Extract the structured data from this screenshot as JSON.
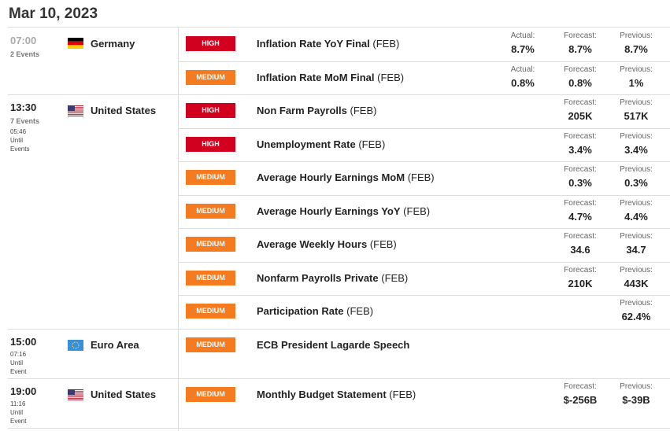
{
  "date": "Mar 10, 2023",
  "groups": [
    {
      "time": "07:00",
      "events_count": "2 Events",
      "country": "Germany",
      "countdown": [],
      "rows": [
        {
          "impact": "HIGH",
          "color": "#d2001e",
          "event": "Inflation Rate YoY Final",
          "period": "(FEB)",
          "actual": {
            "label": "Actual:",
            "value": "8.7%"
          },
          "forecast": {
            "label": "Forecast:",
            "value": "8.7%"
          },
          "previous": {
            "label": "Previous:",
            "value": "8.7%"
          }
        },
        {
          "impact": "MEDIUM",
          "color": "#f47b20",
          "event": "Inflation Rate MoM Final",
          "period": "(FEB)",
          "actual": {
            "label": "Actual:",
            "value": "0.8%"
          },
          "forecast": {
            "label": "Forecast:",
            "value": "0.8%"
          },
          "previous": {
            "label": "Previous:",
            "value": "1%"
          }
        }
      ]
    },
    {
      "time": "13:30",
      "events_count": "7 Events",
      "country": "United States",
      "countdown": [
        "05:46",
        "Until",
        "Events"
      ],
      "rows": [
        {
          "impact": "HIGH",
          "color": "#d2001e",
          "event": "Non Farm Payrolls",
          "period": "(FEB)",
          "forecast": {
            "label": "Forecast:",
            "value": "205K"
          },
          "previous": {
            "label": "Previous:",
            "value": "517K"
          }
        },
        {
          "impact": "HIGH",
          "color": "#d2001e",
          "event": "Unemployment Rate",
          "period": "(FEB)",
          "forecast": {
            "label": "Forecast:",
            "value": "3.4%"
          },
          "previous": {
            "label": "Previous:",
            "value": "3.4%"
          }
        },
        {
          "impact": "MEDIUM",
          "color": "#f47b20",
          "event": "Average Hourly Earnings MoM",
          "period": "(FEB)",
          "forecast": {
            "label": "Forecast:",
            "value": "0.3%"
          },
          "previous": {
            "label": "Previous:",
            "value": "0.3%"
          }
        },
        {
          "impact": "MEDIUM",
          "color": "#f47b20",
          "event": "Average Hourly Earnings YoY",
          "period": "(FEB)",
          "forecast": {
            "label": "Forecast:",
            "value": "4.7%"
          },
          "previous": {
            "label": "Previous:",
            "value": "4.4%"
          }
        },
        {
          "impact": "MEDIUM",
          "color": "#f47b20",
          "event": "Average Weekly Hours",
          "period": "(FEB)",
          "forecast": {
            "label": "Forecast:",
            "value": "34.6"
          },
          "previous": {
            "label": "Previous:",
            "value": "34.7"
          }
        },
        {
          "impact": "MEDIUM",
          "color": "#f47b20",
          "event": "Nonfarm Payrolls Private",
          "period": "(FEB)",
          "forecast": {
            "label": "Forecast:",
            "value": "210K"
          },
          "previous": {
            "label": "Previous:",
            "value": "443K"
          }
        },
        {
          "impact": "MEDIUM",
          "color": "#f47b20",
          "event": "Participation Rate",
          "period": "(FEB)",
          "previous": {
            "label": "Previous:",
            "value": "62.4%"
          }
        }
      ]
    },
    {
      "time": "15:00",
      "country": "Euro Area",
      "countdown": [
        "07:16",
        "Until",
        "Event"
      ],
      "rows": [
        {
          "impact": "MEDIUM",
          "color": "#f47b20",
          "event": "ECB President Lagarde Speech"
        }
      ]
    },
    {
      "time": "19:00",
      "country": "United States",
      "countdown": [
        "11:16",
        "Until",
        "Event"
      ],
      "rows": [
        {
          "impact": "MEDIUM",
          "color": "#f47b20",
          "event": "Monthly Budget Statement",
          "period": "(FEB)",
          "forecast": {
            "label": "Forecast:",
            "value": "$-256B"
          },
          "previous": {
            "label": "Previous:",
            "value": "$-39B"
          }
        }
      ]
    }
  ]
}
